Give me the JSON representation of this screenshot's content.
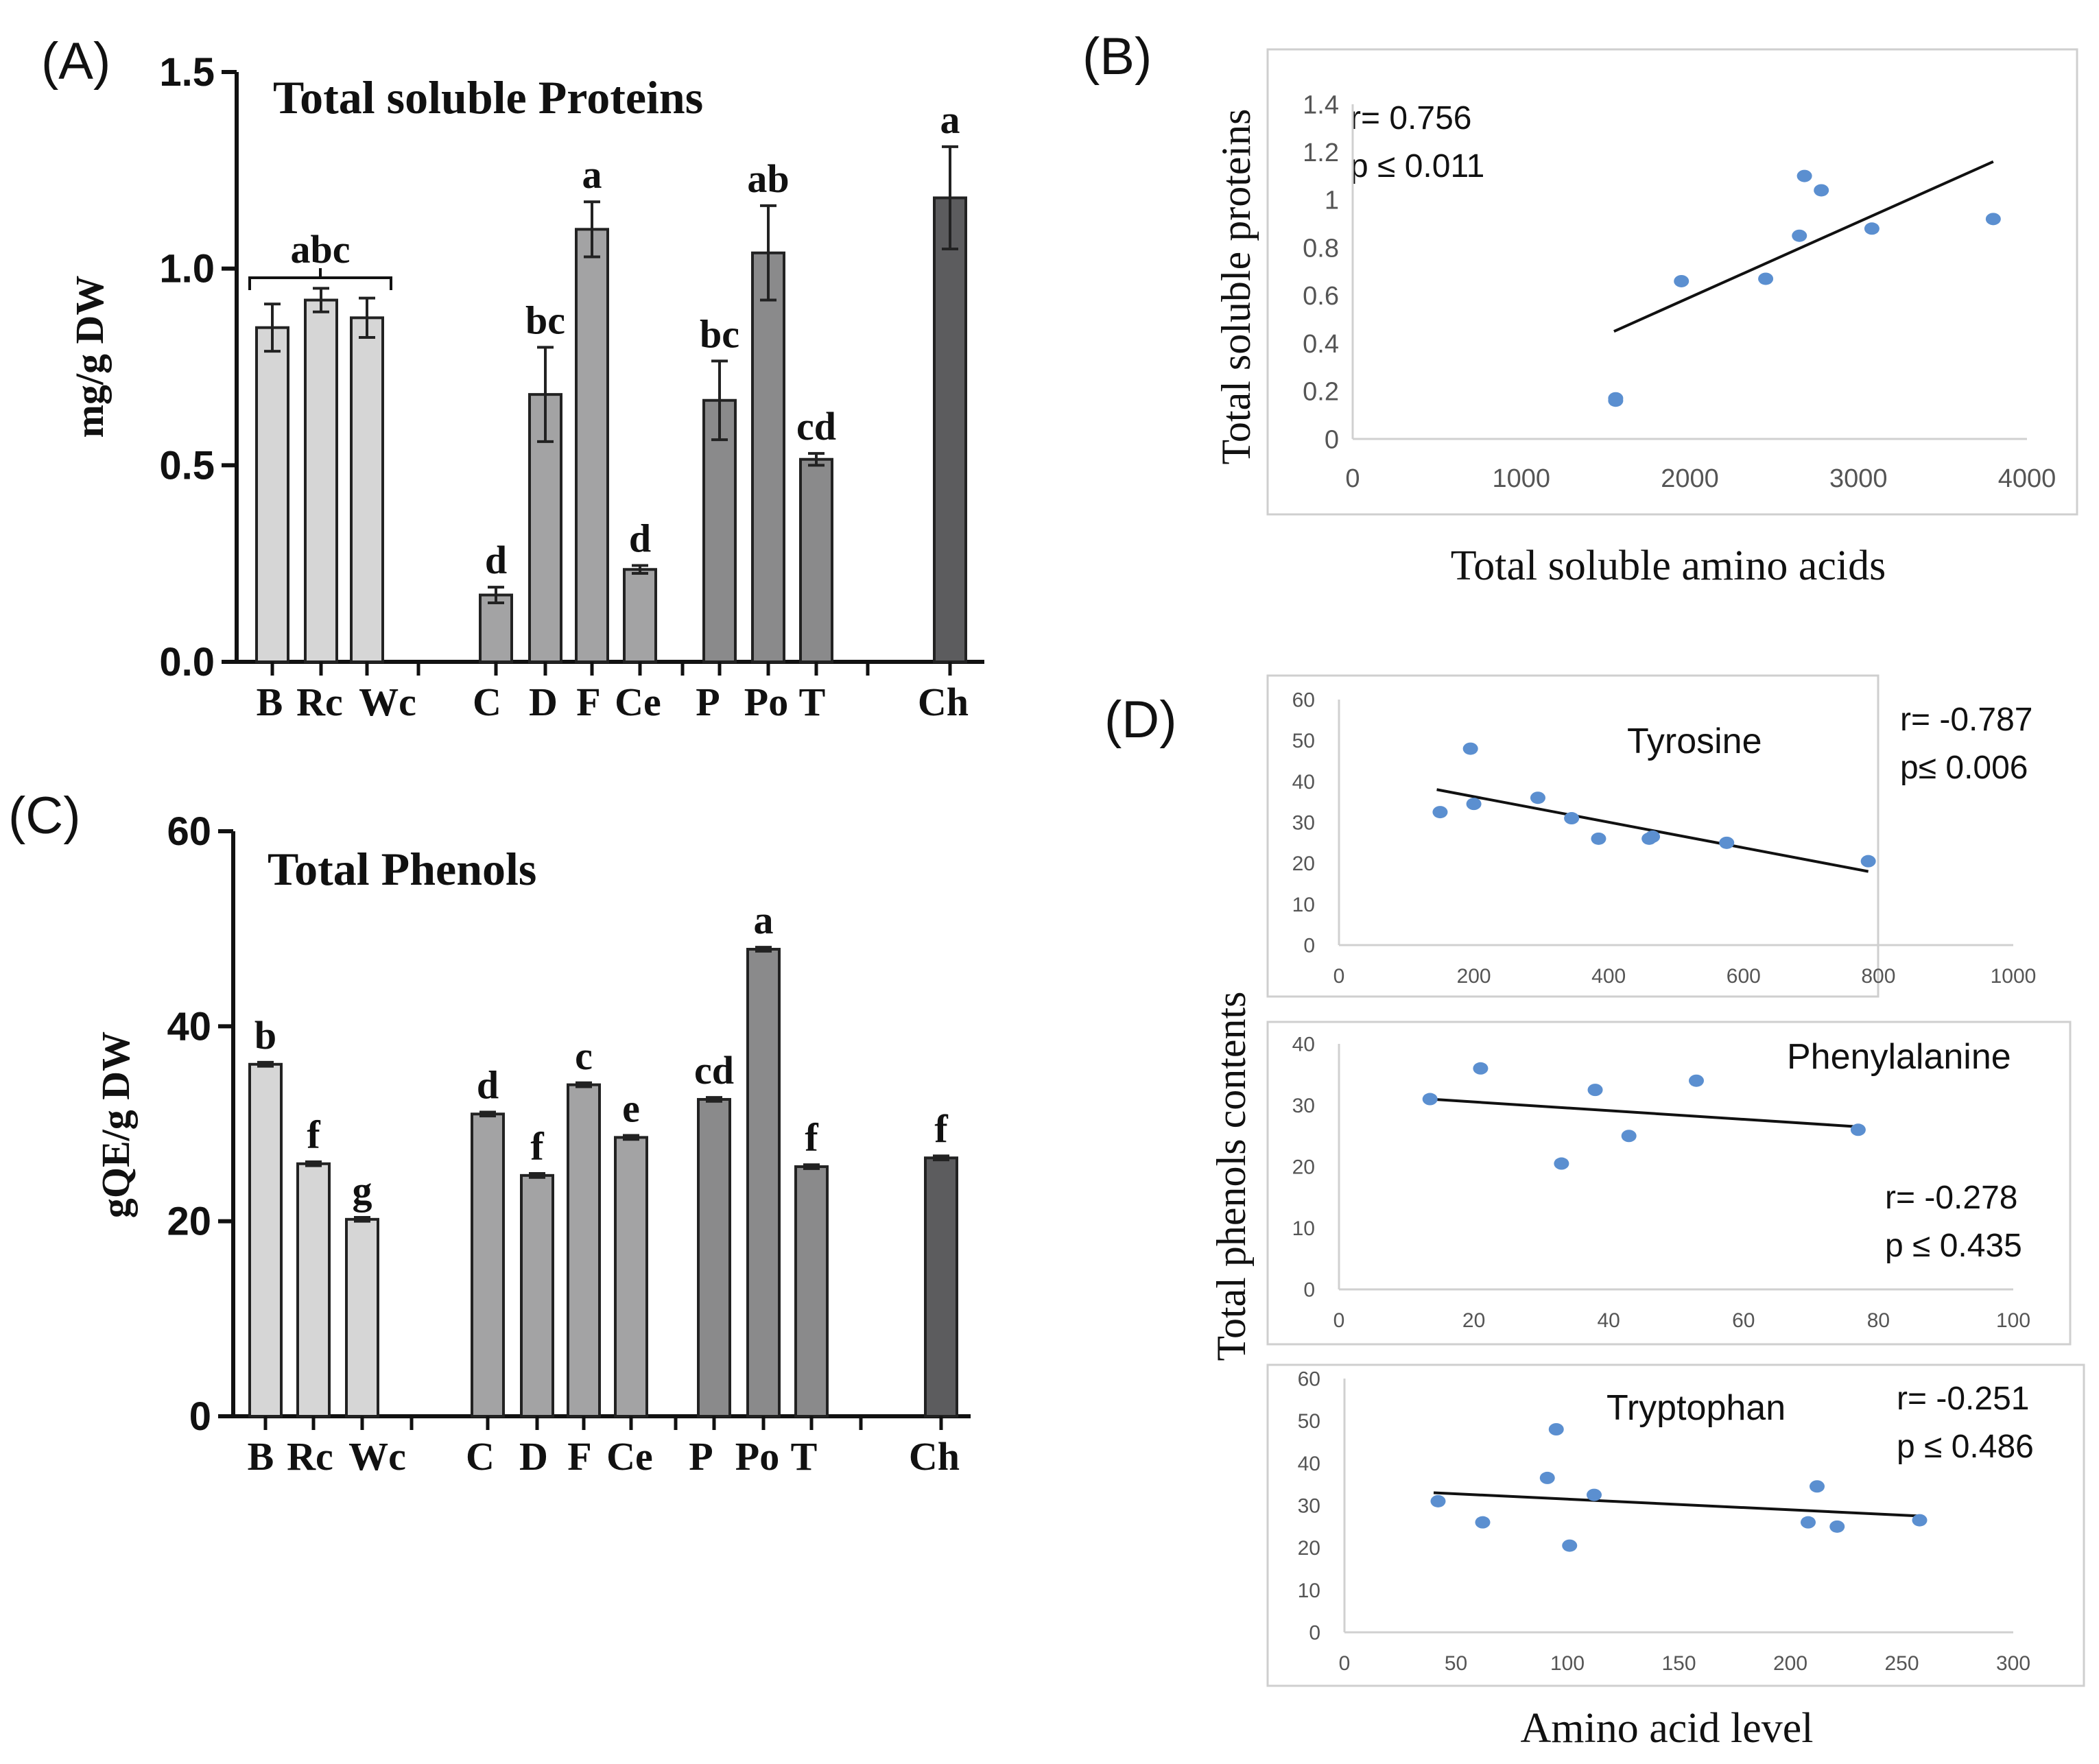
{
  "panels": {
    "A": {
      "label": "(A)",
      "chart_data": {
        "type": "bar",
        "title": "Total soluble Proteins",
        "xlabel": "",
        "ylabel": "mg/g DW",
        "ylim": [
          0,
          1.5
        ],
        "yticks": [
          "0.0",
          "0.5",
          "1.0",
          "1.5"
        ],
        "categories": [
          "B",
          "Rc",
          "Wc",
          "C",
          "D",
          "F",
          "Ce",
          "P",
          "Po",
          "T",
          "Ch"
        ],
        "groups": [
          0,
          0,
          0,
          1,
          1,
          1,
          1,
          2,
          2,
          2,
          3
        ],
        "colors": [
          "#d6d6d6",
          "#a3a3a4",
          "#8a8a8b",
          "#5c5c5e"
        ],
        "values": [
          0.85,
          0.92,
          0.875,
          0.17,
          0.68,
          1.1,
          0.235,
          0.665,
          1.04,
          0.515,
          1.18
        ],
        "errors": [
          0.06,
          0.03,
          0.05,
          0.02,
          0.12,
          0.07,
          0.01,
          0.1,
          0.12,
          0.015,
          0.13
        ],
        "letters": [
          "",
          "",
          "",
          "d",
          "bc",
          "a",
          "d",
          "bc",
          "ab",
          "cd",
          "a"
        ],
        "bracket_letter": "abc"
      }
    },
    "B": {
      "label": "(B)",
      "chart_data": {
        "type": "scatter",
        "xlabel": "Total soluble amino acids",
        "ylabel": "Total soluble proteins",
        "xlim": [
          0,
          4000
        ],
        "ylim": [
          0,
          1.4
        ],
        "xticks": [
          "0",
          "1000",
          "2000",
          "3000",
          "4000"
        ],
        "yticks": [
          "0",
          "0.2",
          "0.4",
          "0.6",
          "0.8",
          "1",
          "1.2",
          "1.4"
        ],
        "points": [
          [
            1560,
            0.16
          ],
          [
            1560,
            0.17
          ],
          [
            1950,
            0.66
          ],
          [
            2450,
            0.67
          ],
          [
            2650,
            0.85
          ],
          [
            2680,
            1.1
          ],
          [
            2780,
            1.04
          ],
          [
            3080,
            0.88
          ],
          [
            3800,
            0.92
          ]
        ],
        "trend": [
          [
            1550,
            0.45
          ],
          [
            3800,
            1.16
          ]
        ],
        "annotation": [
          "r= 0.756",
          "p ≤ 0.011"
        ]
      }
    },
    "C": {
      "label": "(C)",
      "chart_data": {
        "type": "bar",
        "title": "Total Phenols",
        "xlabel": "",
        "ylabel": "gQE/g DW",
        "ylim": [
          0,
          60
        ],
        "yticks": [
          "0",
          "20",
          "40",
          "60"
        ],
        "categories": [
          "B",
          "Rc",
          "Wc",
          "C",
          "D",
          "F",
          "Ce",
          "P",
          "Po",
          "T",
          "Ch"
        ],
        "groups": [
          0,
          0,
          0,
          1,
          1,
          1,
          1,
          2,
          2,
          2,
          3
        ],
        "colors": [
          "#d6d6d6",
          "#a3a3a4",
          "#8a8a8b",
          "#5c5c5e"
        ],
        "values": [
          36.1,
          25.9,
          20.2,
          31.0,
          24.7,
          34.0,
          28.6,
          32.5,
          47.9,
          25.6,
          26.5
        ],
        "errors": [
          0.2,
          0.2,
          0.2,
          0.2,
          0.2,
          0.2,
          0.2,
          0.2,
          0.2,
          0.2,
          0.2
        ],
        "letters": [
          "b",
          "f",
          "g",
          "d",
          "f",
          "c",
          "e",
          "cd",
          "a",
          "f",
          "f"
        ]
      }
    },
    "D": {
      "label": "(D)",
      "ylabel": "Total phenols contents",
      "xlabel": "Amino acid level",
      "chart_data": [
        {
          "type": "scatter",
          "title": "Tyrosine",
          "xlim": [
            0,
            1000
          ],
          "ylim": [
            0,
            60
          ],
          "xticks": [
            "0",
            "200",
            "400",
            "600",
            "800",
            "1000"
          ],
          "yticks": [
            "0",
            "10",
            "20",
            "30",
            "40",
            "50",
            "60"
          ],
          "points": [
            [
              150,
              32.5
            ],
            [
              195,
              48
            ],
            [
              200,
              34.5
            ],
            [
              295,
              36
            ],
            [
              345,
              31
            ],
            [
              385,
              26
            ],
            [
              460,
              26
            ],
            [
              465,
              26.5
            ],
            [
              575,
              25
            ],
            [
              785,
              20.5
            ]
          ],
          "trend": [
            [
              145,
              38
            ],
            [
              785,
              18
            ]
          ],
          "annotation": [
            "r= -0.787",
            "p≤ 0.006"
          ]
        },
        {
          "type": "scatter",
          "title": "Phenylalanine",
          "xlim": [
            0,
            100
          ],
          "ylim": [
            0,
            40
          ],
          "xticks": [
            "0",
            "20",
            "40",
            "60",
            "80",
            "100"
          ],
          "yticks": [
            "0",
            "10",
            "20",
            "30",
            "40"
          ],
          "points": [
            [
              13.5,
              31
            ],
            [
              21,
              36
            ],
            [
              33,
              20.5
            ],
            [
              38,
              32.5
            ],
            [
              43,
              25
            ],
            [
              53,
              34
            ],
            [
              77,
              26
            ]
          ],
          "trend": [
            [
              13.5,
              31
            ],
            [
              77,
              26.5
            ]
          ],
          "annotation": [
            "r= -0.278",
            "p ≤ 0.435"
          ]
        },
        {
          "type": "scatter",
          "title": "Tryptophan",
          "xlim": [
            0,
            300
          ],
          "ylim": [
            0,
            60
          ],
          "xticks": [
            "0",
            "50",
            "100",
            "150",
            "200",
            "250",
            "300"
          ],
          "yticks": [
            "0",
            "10",
            "20",
            "30",
            "40",
            "50",
            "60"
          ],
          "points": [
            [
              42,
              31
            ],
            [
              62,
              26
            ],
            [
              91,
              36.5
            ],
            [
              95,
              48
            ],
            [
              101,
              20.5
            ],
            [
              112,
              32.5
            ],
            [
              208,
              26
            ],
            [
              212,
              34.5
            ],
            [
              221,
              25
            ],
            [
              258,
              26.5
            ]
          ],
          "trend": [
            [
              40,
              33
            ],
            [
              258,
              27.5
            ]
          ],
          "annotation": [
            "r= -0.251",
            "p ≤ 0.486"
          ]
        }
      ]
    }
  }
}
